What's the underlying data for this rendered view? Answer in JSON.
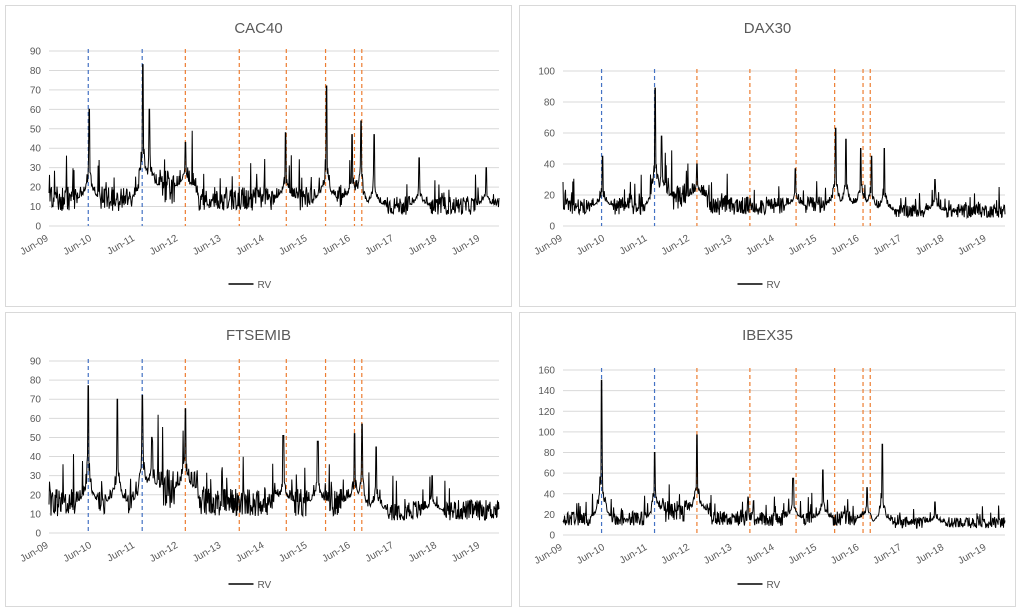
{
  "chart_data": [
    {
      "type": "line",
      "title": "CAC40",
      "x_ticks": [
        "Jun-09",
        "Jun-10",
        "Jun-11",
        "Jun-12",
        "Jun-13",
        "Jun-14",
        "Jun-15",
        "Jun-16",
        "Jun-17",
        "Jun-18",
        "Jun-19"
      ],
      "xlim": [
        2009.42,
        2019.85
      ],
      "ylim": [
        0,
        90
      ],
      "y_ticks": [
        0,
        10,
        20,
        30,
        40,
        50,
        60,
        70,
        80,
        90
      ],
      "grid": true,
      "legend": "bottom",
      "series": [
        {
          "name": "RV",
          "color": "#000000"
        }
      ],
      "blue_dashed_lines": [
        2010.33,
        2011.58
      ],
      "orange_dashed_lines": [
        2012.58,
        2013.83,
        2014.92,
        2015.83,
        2016.5,
        2016.67
      ],
      "peaks": [
        [
          2010.35,
          60
        ],
        [
          2011.6,
          83
        ],
        [
          2011.75,
          60
        ],
        [
          2012.58,
          43
        ],
        [
          2014.9,
          48
        ],
        [
          2015.85,
          72
        ],
        [
          2016.45,
          47
        ],
        [
          2016.65,
          54
        ],
        [
          2016.95,
          47
        ],
        [
          2018.0,
          35
        ],
        [
          2019.55,
          30
        ]
      ],
      "base_level": 14
    },
    {
      "type": "line",
      "title": "DAX30",
      "x_ticks": [
        "Jun-09",
        "Jun-10",
        "Jun-11",
        "Jun-12",
        "Jun-13",
        "Jun-14",
        "Jun-15",
        "Jun-16",
        "Jun-17",
        "Jun-18",
        "Jun-19"
      ],
      "xlim": [
        2009.42,
        2019.85
      ],
      "ylim": [
        0,
        100
      ],
      "y_ticks": [
        0,
        20,
        40,
        60,
        80,
        100
      ],
      "grid": true,
      "legend": "bottom",
      "series": [
        {
          "name": "RV",
          "color": "#000000"
        }
      ],
      "blue_dashed_lines": [
        2010.33,
        2011.58
      ],
      "orange_dashed_lines": [
        2012.58,
        2013.83,
        2014.92,
        2015.83,
        2016.5,
        2016.67
      ],
      "peaks": [
        [
          2010.35,
          45
        ],
        [
          2011.6,
          89
        ],
        [
          2011.75,
          58
        ],
        [
          2012.58,
          40
        ],
        [
          2014.9,
          37
        ],
        [
          2015.85,
          63
        ],
        [
          2016.1,
          56
        ],
        [
          2016.45,
          50
        ],
        [
          2016.7,
          45
        ],
        [
          2017.0,
          50
        ],
        [
          2018.2,
          30
        ]
      ],
      "base_level": 13
    },
    {
      "type": "line",
      "title": "FTSEMIB",
      "x_ticks": [
        "Jun-09",
        "Jun-10",
        "Jun-11",
        "Jun-12",
        "Jun-13",
        "Jun-14",
        "Jun-15",
        "Jun-16",
        "Jun-17",
        "Jun-18",
        "Jun-19"
      ],
      "xlim": [
        2009.42,
        2019.85
      ],
      "ylim": [
        0,
        90
      ],
      "y_ticks": [
        0,
        10,
        20,
        30,
        40,
        50,
        60,
        70,
        80,
        90
      ],
      "grid": true,
      "legend": "bottom",
      "series": [
        {
          "name": "RV",
          "color": "#000000"
        }
      ],
      "blue_dashed_lines": [
        2010.33,
        2011.58
      ],
      "orange_dashed_lines": [
        2012.58,
        2013.83,
        2014.92,
        2015.83,
        2016.5,
        2016.67
      ],
      "peaks": [
        [
          2010.33,
          77
        ],
        [
          2011.0,
          70
        ],
        [
          2011.58,
          72
        ],
        [
          2011.8,
          50
        ],
        [
          2012.58,
          65
        ],
        [
          2014.85,
          51
        ],
        [
          2015.65,
          48
        ],
        [
          2016.5,
          52
        ],
        [
          2016.68,
          57
        ],
        [
          2017.0,
          45
        ],
        [
          2018.3,
          30
        ]
      ],
      "base_level": 16
    },
    {
      "type": "line",
      "title": "IBEX35",
      "x_ticks": [
        "Jun-09",
        "Jun-10",
        "Jun-11",
        "Jun-12",
        "Jun-13",
        "Jun-14",
        "Jun-15",
        "Jun-16",
        "Jun-17",
        "Jun-18",
        "Jun-19"
      ],
      "xlim": [
        2009.42,
        2019.85
      ],
      "ylim": [
        0,
        160
      ],
      "y_ticks": [
        0,
        20,
        40,
        60,
        80,
        100,
        120,
        140,
        160
      ],
      "grid": true,
      "legend": "bottom",
      "series": [
        {
          "name": "RV",
          "color": "#000000"
        }
      ],
      "blue_dashed_lines": [
        2010.33,
        2011.58
      ],
      "orange_dashed_lines": [
        2012.58,
        2013.83,
        2014.92,
        2015.83,
        2016.5,
        2016.67
      ],
      "peaks": [
        [
          2010.33,
          150
        ],
        [
          2011.58,
          80
        ],
        [
          2012.58,
          97
        ],
        [
          2014.85,
          55
        ],
        [
          2015.55,
          63
        ],
        [
          2016.6,
          46
        ],
        [
          2016.95,
          88
        ],
        [
          2018.2,
          32
        ]
      ],
      "base_level": 16
    }
  ]
}
